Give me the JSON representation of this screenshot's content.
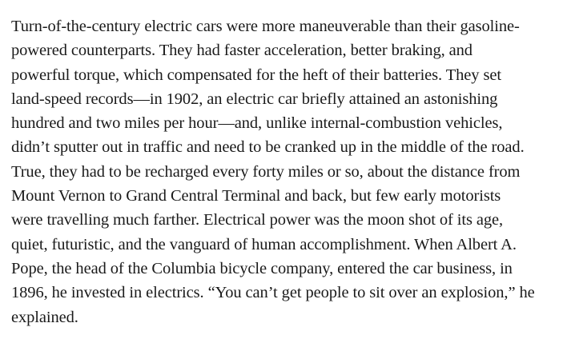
{
  "article": {
    "lines": [
      "Turn-of-the-century electric cars were more maneuverable than their gasoline-",
      "powered counterparts. They had faster acceleration, better braking, and",
      "powerful torque, which compensated for the heft of their batteries. They set",
      "land-speed records—in 1902, an electric car briefly attained an astonishing",
      "hundred and two miles per hour—and, unlike internal-combustion vehicles,",
      "didn’t sputter out in traffic and need to be cranked up in the middle of the road.",
      "True, they had to be recharged every forty miles or so, about the distance from",
      "Mount Vernon to Grand Central Terminal and back, but few early motorists",
      "were travelling much farther. Electrical power was the moon shot of its age,",
      "quiet, futuristic, and the vanguard of human accomplishment. When Albert A.",
      "Pope, the head of the Columbia bicycle company, entered the car business, in",
      "1896, he invested in electrics. “You can’t get people to sit over an explosion,” he",
      "explained."
    ]
  }
}
